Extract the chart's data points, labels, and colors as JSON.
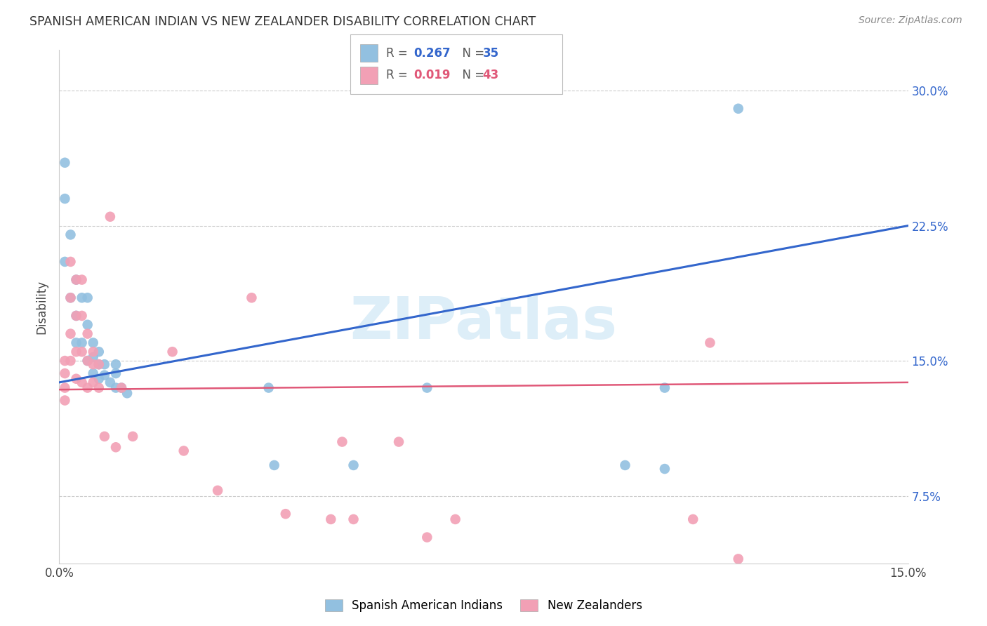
{
  "title": "SPANISH AMERICAN INDIAN VS NEW ZEALANDER DISABILITY CORRELATION CHART",
  "source": "Source: ZipAtlas.com",
  "ylabel": "Disability",
  "xlim": [
    0.0,
    0.15
  ],
  "ylim": [
    0.0375,
    0.3225
  ],
  "xticks": [
    0.0,
    0.025,
    0.05,
    0.075,
    0.1,
    0.125,
    0.15
  ],
  "xtick_labels": [
    "0.0%",
    "",
    "",
    "",
    "",
    "",
    "15.0%"
  ],
  "ytick_labels": [
    "7.5%",
    "15.0%",
    "22.5%",
    "30.0%"
  ],
  "yticks": [
    0.075,
    0.15,
    0.225,
    0.3
  ],
  "blue_label": "Spanish American Indians",
  "pink_label": "New Zealanders",
  "blue_color": "#92C0E0",
  "pink_color": "#F2A0B5",
  "blue_line_color": "#3366CC",
  "pink_line_color": "#E05878",
  "right_label_color": "#3366CC",
  "watermark_text": "ZIPatlas",
  "watermark_color": "#DDEEF8",
  "blue_trend_x": [
    0.0,
    0.15
  ],
  "blue_trend_y": [
    0.138,
    0.225
  ],
  "pink_trend_x": [
    0.0,
    0.15
  ],
  "pink_trend_y": [
    0.134,
    0.138
  ],
  "blue_x": [
    0.001,
    0.001,
    0.001,
    0.002,
    0.002,
    0.003,
    0.003,
    0.003,
    0.004,
    0.004,
    0.005,
    0.005,
    0.005,
    0.006,
    0.006,
    0.006,
    0.007,
    0.007,
    0.007,
    0.008,
    0.008,
    0.009,
    0.01,
    0.01,
    0.01,
    0.011,
    0.012,
    0.037,
    0.038,
    0.052,
    0.065,
    0.1,
    0.107,
    0.107,
    0.12
  ],
  "blue_y": [
    0.26,
    0.24,
    0.205,
    0.22,
    0.185,
    0.195,
    0.175,
    0.16,
    0.185,
    0.16,
    0.185,
    0.17,
    0.15,
    0.16,
    0.152,
    0.143,
    0.155,
    0.148,
    0.14,
    0.148,
    0.142,
    0.138,
    0.148,
    0.143,
    0.135,
    0.135,
    0.132,
    0.135,
    0.092,
    0.092,
    0.135,
    0.092,
    0.135,
    0.09,
    0.29
  ],
  "pink_x": [
    0.001,
    0.001,
    0.001,
    0.001,
    0.002,
    0.002,
    0.002,
    0.002,
    0.003,
    0.003,
    0.003,
    0.003,
    0.004,
    0.004,
    0.004,
    0.004,
    0.005,
    0.005,
    0.005,
    0.006,
    0.006,
    0.006,
    0.007,
    0.007,
    0.008,
    0.009,
    0.01,
    0.011,
    0.013,
    0.02,
    0.022,
    0.028,
    0.034,
    0.04,
    0.048,
    0.05,
    0.052,
    0.06,
    0.065,
    0.07,
    0.112,
    0.115,
    0.12
  ],
  "pink_y": [
    0.15,
    0.143,
    0.135,
    0.128,
    0.205,
    0.185,
    0.165,
    0.15,
    0.195,
    0.175,
    0.155,
    0.14,
    0.195,
    0.175,
    0.155,
    0.138,
    0.165,
    0.15,
    0.135,
    0.155,
    0.148,
    0.138,
    0.148,
    0.135,
    0.108,
    0.23,
    0.102,
    0.135,
    0.108,
    0.155,
    0.1,
    0.078,
    0.185,
    0.065,
    0.062,
    0.105,
    0.062,
    0.105,
    0.052,
    0.062,
    0.062,
    0.16,
    0.04
  ]
}
